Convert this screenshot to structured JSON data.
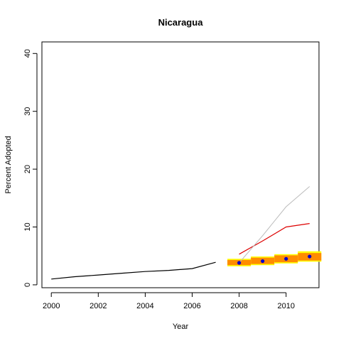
{
  "chart_data": {
    "type": "line",
    "title": "Nicaragua",
    "xlabel": "Year",
    "ylabel": "Percent Adopted",
    "xlim": [
      1999.6,
      2011.4
    ],
    "ylim": [
      -0.5,
      42
    ],
    "x_ticks": [
      2000,
      2002,
      2004,
      2006,
      2008,
      2010
    ],
    "x_tick_labels": [
      "2000",
      "2002",
      "2004",
      "2006",
      "2008",
      "2010"
    ],
    "y_ticks": [
      0,
      10,
      20,
      30,
      40
    ],
    "y_tick_labels": [
      "0",
      "10",
      "20",
      "30",
      "40"
    ],
    "grid": false,
    "colors": {
      "observed": "#000000",
      "red_line": "#dd0000",
      "gray_line": "#bbbbbb",
      "band_outer": "#ffff00",
      "band_inner": "#ff8c00",
      "point": "#0000cc"
    },
    "series": [
      {
        "style": "observed",
        "x": [
          2000,
          2001,
          2002,
          2003,
          2004,
          2005,
          2006,
          2007
        ],
        "y": [
          1.0,
          1.4,
          1.7,
          2.0,
          2.3,
          2.5,
          2.8,
          3.9
        ]
      },
      {
        "style": "red_line",
        "x": [
          2008,
          2009,
          2010,
          2011
        ],
        "y": [
          5.3,
          7.6,
          10.0,
          10.6
        ]
      },
      {
        "style": "gray_line",
        "x": [
          2008,
          2009,
          2010,
          2011
        ],
        "y": [
          3.8,
          8.5,
          13.5,
          17.0
        ]
      }
    ],
    "forecast": {
      "x": [
        2008,
        2009,
        2010,
        2011
      ],
      "point": [
        3.8,
        4.1,
        4.5,
        4.9
      ],
      "outer_low": [
        3.2,
        3.4,
        3.7,
        4.0
      ],
      "outer_high": [
        4.5,
        4.9,
        5.3,
        5.8
      ],
      "inner_low": [
        3.4,
        3.6,
        3.9,
        4.2
      ],
      "inner_high": [
        4.3,
        4.7,
        5.1,
        5.5
      ]
    }
  }
}
